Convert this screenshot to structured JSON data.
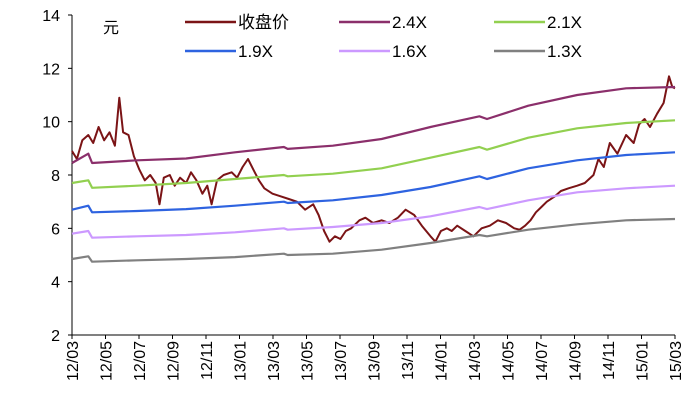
{
  "chart_data": {
    "type": "line",
    "ylabel": "元",
    "ylim": [
      2,
      14
    ],
    "yticks": [
      "2",
      "4",
      "6",
      "8",
      "10",
      "12",
      "14"
    ],
    "xticks": [
      "12/03",
      "12/05",
      "12/07",
      "12/09",
      "12/11",
      "13/01",
      "13/03",
      "13/05",
      "13/07",
      "13/09",
      "13/11",
      "14/01",
      "14/03",
      "14/05",
      "14/07",
      "14/09",
      "14/11",
      "15/01",
      "15/03"
    ],
    "grid": false,
    "legend_position": "top",
    "series": [
      {
        "name": "收盘价",
        "color": "#7b1416",
        "points": [
          [
            "2012-03-01",
            8.9
          ],
          [
            "2012-03-10",
            8.6
          ],
          [
            "2012-03-20",
            9.3
          ],
          [
            "2012-04-01",
            9.5
          ],
          [
            "2012-04-10",
            9.2
          ],
          [
            "2012-04-20",
            9.8
          ],
          [
            "2012-04-30",
            9.3
          ],
          [
            "2012-05-10",
            9.6
          ],
          [
            "2012-05-20",
            9.1
          ],
          [
            "2012-05-28",
            10.9
          ],
          [
            "2012-06-05",
            9.6
          ],
          [
            "2012-06-15",
            9.5
          ],
          [
            "2012-06-25",
            8.7
          ],
          [
            "2012-07-05",
            8.2
          ],
          [
            "2012-07-15",
            7.8
          ],
          [
            "2012-07-25",
            8.0
          ],
          [
            "2012-08-05",
            7.7
          ],
          [
            "2012-08-12",
            6.9
          ],
          [
            "2012-08-20",
            7.9
          ],
          [
            "2012-09-01",
            8.0
          ],
          [
            "2012-09-10",
            7.6
          ],
          [
            "2012-09-20",
            7.9
          ],
          [
            "2012-10-01",
            7.7
          ],
          [
            "2012-10-10",
            8.1
          ],
          [
            "2012-10-20",
            7.8
          ],
          [
            "2012-11-01",
            7.3
          ],
          [
            "2012-11-10",
            7.6
          ],
          [
            "2012-11-18",
            6.9
          ],
          [
            "2012-11-28",
            7.8
          ],
          [
            "2012-12-10",
            8.0
          ],
          [
            "2012-12-25",
            8.1
          ],
          [
            "2013-01-05",
            7.9
          ],
          [
            "2013-01-15",
            8.3
          ],
          [
            "2013-01-25",
            8.6
          ],
          [
            "2013-02-05",
            8.2
          ],
          [
            "2013-02-15",
            7.8
          ],
          [
            "2013-02-25",
            7.5
          ],
          [
            "2013-03-10",
            7.3
          ],
          [
            "2013-03-25",
            7.2
          ],
          [
            "2013-04-10",
            7.1
          ],
          [
            "2013-04-25",
            7.0
          ],
          [
            "2013-05-10",
            6.7
          ],
          [
            "2013-05-25",
            6.9
          ],
          [
            "2013-06-05",
            6.5
          ],
          [
            "2013-06-15",
            5.9
          ],
          [
            "2013-06-25",
            5.5
          ],
          [
            "2013-07-05",
            5.7
          ],
          [
            "2013-07-15",
            5.6
          ],
          [
            "2013-07-25",
            5.9
          ],
          [
            "2013-08-05",
            6.0
          ],
          [
            "2013-08-20",
            6.3
          ],
          [
            "2013-09-01",
            6.4
          ],
          [
            "2013-09-15",
            6.2
          ],
          [
            "2013-10-01",
            6.3
          ],
          [
            "2013-10-15",
            6.2
          ],
          [
            "2013-11-01",
            6.4
          ],
          [
            "2013-11-15",
            6.7
          ],
          [
            "2013-12-01",
            6.5
          ],
          [
            "2013-12-15",
            6.1
          ],
          [
            "2014-01-01",
            5.7
          ],
          [
            "2014-01-10",
            5.5
          ],
          [
            "2014-01-20",
            5.9
          ],
          [
            "2014-02-01",
            6.0
          ],
          [
            "2014-02-10",
            5.9
          ],
          [
            "2014-02-20",
            6.1
          ],
          [
            "2014-03-05",
            5.9
          ],
          [
            "2014-03-20",
            5.7
          ],
          [
            "2014-04-05",
            6.0
          ],
          [
            "2014-04-20",
            6.1
          ],
          [
            "2014-05-05",
            6.3
          ],
          [
            "2014-05-20",
            6.2
          ],
          [
            "2014-06-05",
            6.0
          ],
          [
            "2014-06-15",
            5.95
          ],
          [
            "2014-06-25",
            6.1
          ],
          [
            "2014-07-05",
            6.3
          ],
          [
            "2014-07-15",
            6.6
          ],
          [
            "2014-07-25",
            6.8
          ],
          [
            "2014-08-05",
            7.0
          ],
          [
            "2014-08-20",
            7.2
          ],
          [
            "2014-09-01",
            7.4
          ],
          [
            "2014-09-15",
            7.5
          ],
          [
            "2014-10-01",
            7.6
          ],
          [
            "2014-10-15",
            7.7
          ],
          [
            "2014-11-01",
            8.0
          ],
          [
            "2014-11-10",
            8.6
          ],
          [
            "2014-11-20",
            8.3
          ],
          [
            "2014-12-01",
            9.2
          ],
          [
            "2014-12-15",
            8.8
          ],
          [
            "2015-01-01",
            9.5
          ],
          [
            "2015-01-15",
            9.2
          ],
          [
            "2015-01-25",
            9.9
          ],
          [
            "2015-02-05",
            10.1
          ],
          [
            "2015-02-15",
            9.8
          ],
          [
            "2015-02-28",
            10.3
          ],
          [
            "2015-03-10",
            10.7
          ],
          [
            "2015-03-20",
            11.7
          ],
          [
            "2015-03-26",
            11.3
          ],
          [
            "2015-03-31",
            11.25
          ]
        ]
      },
      {
        "name": "2.4X",
        "color": "#8b2f6b",
        "points": [
          [
            "2012-03-01",
            8.45
          ],
          [
            "2012-04-01",
            8.8
          ],
          [
            "2012-04-08",
            8.45
          ],
          [
            "2012-07-01",
            8.55
          ],
          [
            "2012-10-01",
            8.62
          ],
          [
            "2013-01-01",
            8.85
          ],
          [
            "2013-04-01",
            9.05
          ],
          [
            "2013-04-08",
            8.98
          ],
          [
            "2013-07-01",
            9.1
          ],
          [
            "2013-10-01",
            9.35
          ],
          [
            "2014-01-01",
            9.8
          ],
          [
            "2014-04-01",
            10.2
          ],
          [
            "2014-04-15",
            10.1
          ],
          [
            "2014-07-01",
            10.6
          ],
          [
            "2014-10-01",
            11.0
          ],
          [
            "2015-01-01",
            11.25
          ],
          [
            "2015-03-31",
            11.3
          ]
        ]
      },
      {
        "name": "2.1X",
        "color": "#92d050",
        "points": [
          [
            "2012-03-01",
            7.7
          ],
          [
            "2012-04-01",
            7.8
          ],
          [
            "2012-04-08",
            7.52
          ],
          [
            "2012-07-01",
            7.6
          ],
          [
            "2012-10-01",
            7.7
          ],
          [
            "2013-01-01",
            7.85
          ],
          [
            "2013-04-01",
            8.0
          ],
          [
            "2013-04-08",
            7.95
          ],
          [
            "2013-07-01",
            8.05
          ],
          [
            "2013-10-01",
            8.25
          ],
          [
            "2014-01-01",
            8.65
          ],
          [
            "2014-04-01",
            9.05
          ],
          [
            "2014-04-15",
            8.95
          ],
          [
            "2014-07-01",
            9.4
          ],
          [
            "2014-10-01",
            9.75
          ],
          [
            "2015-01-01",
            9.95
          ],
          [
            "2015-03-31",
            10.05
          ]
        ]
      },
      {
        "name": "1.9X",
        "color": "#2e63e0",
        "points": [
          [
            "2012-03-01",
            6.7
          ],
          [
            "2012-04-01",
            6.85
          ],
          [
            "2012-04-08",
            6.6
          ],
          [
            "2012-07-01",
            6.65
          ],
          [
            "2012-10-01",
            6.72
          ],
          [
            "2013-01-01",
            6.85
          ],
          [
            "2013-04-01",
            7.0
          ],
          [
            "2013-04-08",
            6.95
          ],
          [
            "2013-07-01",
            7.05
          ],
          [
            "2013-10-01",
            7.25
          ],
          [
            "2014-01-01",
            7.55
          ],
          [
            "2014-04-01",
            7.95
          ],
          [
            "2014-04-15",
            7.85
          ],
          [
            "2014-07-01",
            8.25
          ],
          [
            "2014-10-01",
            8.55
          ],
          [
            "2015-01-01",
            8.75
          ],
          [
            "2015-03-31",
            8.85
          ]
        ]
      },
      {
        "name": "1.6X",
        "color": "#cc99ff",
        "points": [
          [
            "2012-03-01",
            5.8
          ],
          [
            "2012-04-01",
            5.9
          ],
          [
            "2012-04-08",
            5.65
          ],
          [
            "2012-07-01",
            5.7
          ],
          [
            "2012-10-01",
            5.75
          ],
          [
            "2013-01-01",
            5.85
          ],
          [
            "2013-04-01",
            6.0
          ],
          [
            "2013-04-08",
            5.95
          ],
          [
            "2013-07-01",
            6.05
          ],
          [
            "2013-10-01",
            6.2
          ],
          [
            "2014-01-01",
            6.45
          ],
          [
            "2014-04-01",
            6.8
          ],
          [
            "2014-04-15",
            6.72
          ],
          [
            "2014-07-01",
            7.05
          ],
          [
            "2014-10-01",
            7.35
          ],
          [
            "2015-01-01",
            7.5
          ],
          [
            "2015-03-31",
            7.6
          ]
        ]
      },
      {
        "name": "1.3X",
        "color": "#808080",
        "points": [
          [
            "2012-03-01",
            4.85
          ],
          [
            "2012-04-01",
            4.95
          ],
          [
            "2012-04-08",
            4.75
          ],
          [
            "2012-07-01",
            4.8
          ],
          [
            "2012-10-01",
            4.85
          ],
          [
            "2013-01-01",
            4.92
          ],
          [
            "2013-04-01",
            5.05
          ],
          [
            "2013-04-08",
            5.0
          ],
          [
            "2013-07-01",
            5.05
          ],
          [
            "2013-10-01",
            5.2
          ],
          [
            "2014-01-01",
            5.45
          ],
          [
            "2014-04-01",
            5.75
          ],
          [
            "2014-04-15",
            5.7
          ],
          [
            "2014-07-01",
            5.95
          ],
          [
            "2014-10-01",
            6.15
          ],
          [
            "2015-01-01",
            6.3
          ],
          [
            "2015-03-31",
            6.35
          ]
        ]
      }
    ]
  }
}
